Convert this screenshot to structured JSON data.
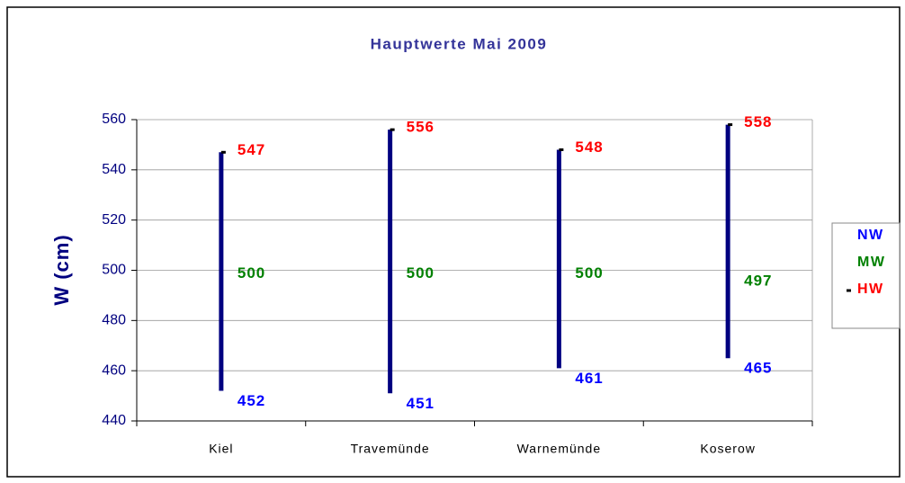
{
  "chart_data": {
    "type": "high-low",
    "title": "Hauptwerte Mai 2009",
    "y_label": "W (cm)",
    "categories": [
      "Kiel",
      "Travemünde",
      "Warnemünde",
      "Koserow"
    ],
    "series": [
      {
        "name": "NW",
        "color": "#0000ff",
        "values": [
          452,
          451,
          461,
          465
        ]
      },
      {
        "name": "MW",
        "color": "#008000",
        "values": [
          500,
          500,
          500,
          497
        ]
      },
      {
        "name": "HW",
        "color": "#ff0000",
        "values": [
          547,
          556,
          548,
          558
        ]
      }
    ],
    "line_color": "#000080",
    "ylim": [
      440,
      560
    ],
    "yticks": [
      440,
      460,
      480,
      500,
      520,
      540,
      560
    ],
    "grid": true
  }
}
